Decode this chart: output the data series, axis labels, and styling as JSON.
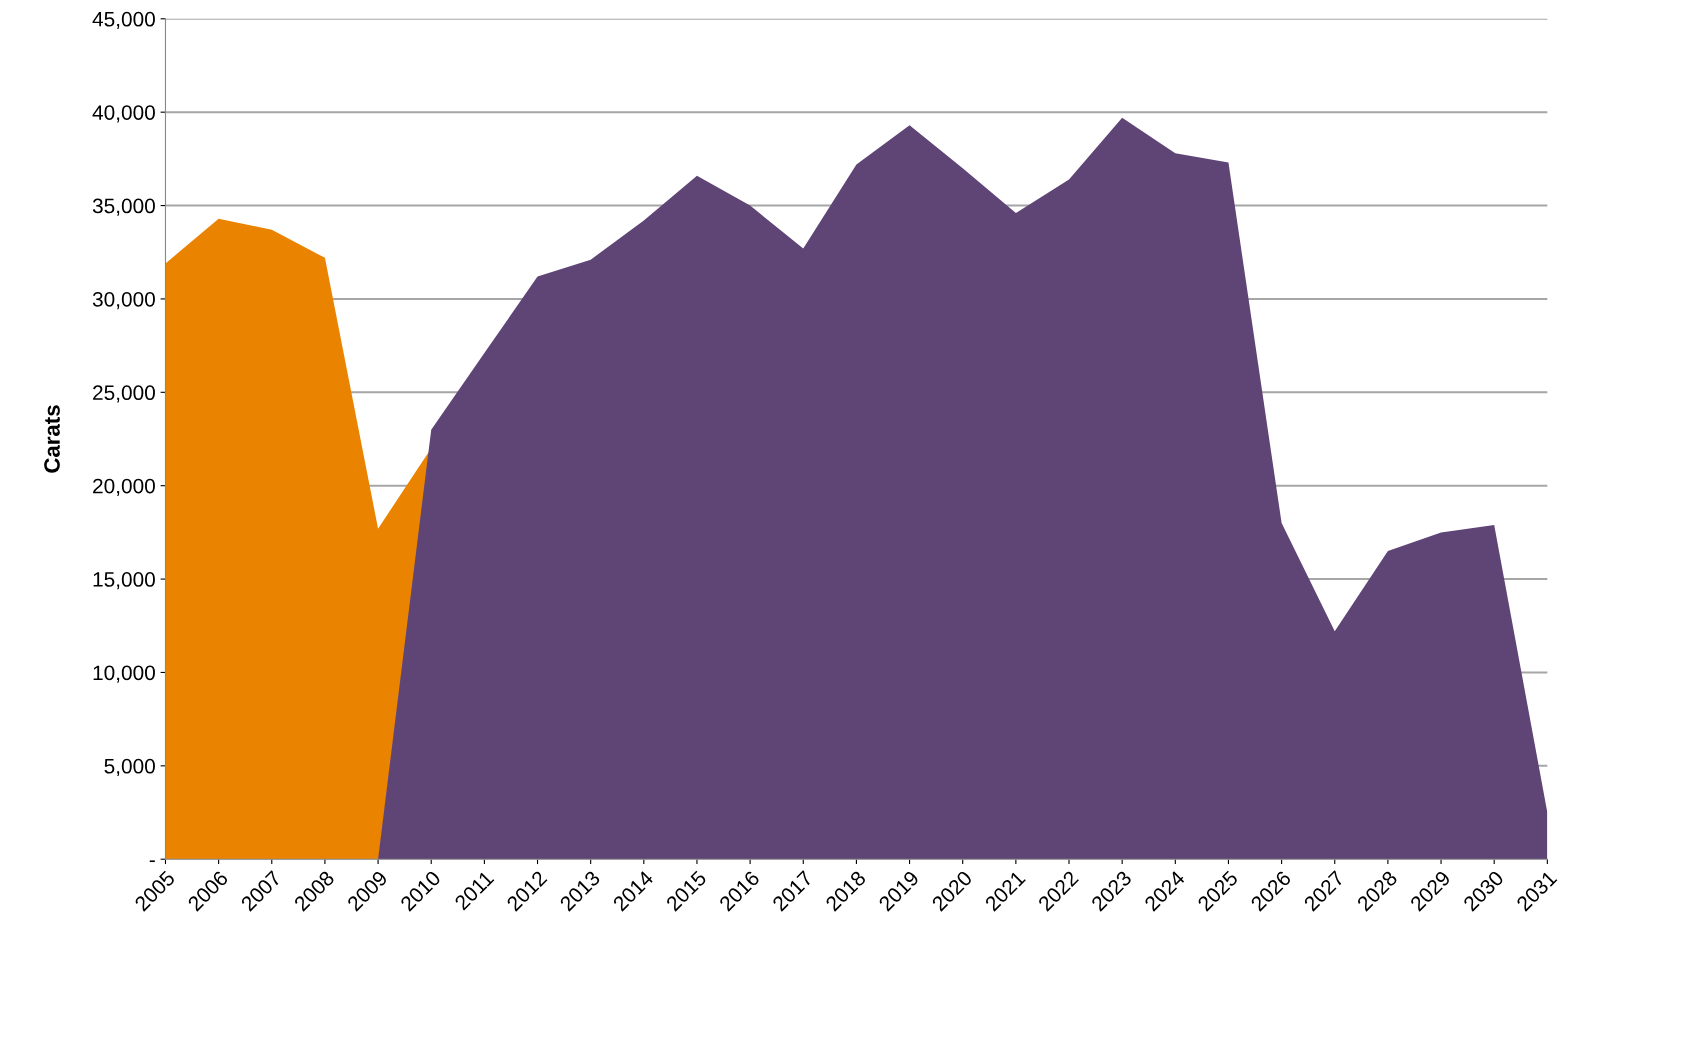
{
  "chart_data": {
    "type": "area",
    "ylabel": "Carats",
    "xlim": [
      2005,
      2031
    ],
    "xticks": [
      2005,
      2006,
      2007,
      2008,
      2009,
      2010,
      2011,
      2012,
      2013,
      2014,
      2015,
      2016,
      2017,
      2018,
      2019,
      2020,
      2021,
      2022,
      2023,
      2024,
      2025,
      2026,
      2027,
      2028,
      2029,
      2030,
      2031
    ],
    "ylim": [
      0,
      45000
    ],
    "yticks": [
      {
        "value": 0,
        "label": "-"
      },
      {
        "value": 5000,
        "label": "5,000"
      },
      {
        "value": 10000,
        "label": "10,000"
      },
      {
        "value": 15000,
        "label": "15,000"
      },
      {
        "value": 20000,
        "label": "20,000"
      },
      {
        "value": 25000,
        "label": "25,000"
      },
      {
        "value": 30000,
        "label": "30,000"
      },
      {
        "value": 35000,
        "label": "35,000"
      },
      {
        "value": 40000,
        "label": "40,000"
      },
      {
        "value": 45000,
        "label": "45,000"
      }
    ],
    "grid": "y",
    "legend": false,
    "series": [
      {
        "color": "#e98300",
        "x": [
          2005,
          2006,
          2007,
          2008,
          2009,
          2010
        ],
        "values": [
          31900,
          34300,
          33700,
          32200,
          17700,
          22000
        ]
      },
      {
        "color": "#5f4476",
        "x": [
          2009,
          2010,
          2011,
          2012,
          2013,
          2014,
          2015,
          2016,
          2017,
          2018,
          2019,
          2020,
          2021,
          2022,
          2023,
          2024,
          2025,
          2026,
          2027,
          2028,
          2029,
          2030,
          2031
        ],
        "values": [
          0,
          23000,
          27100,
          31200,
          32100,
          34200,
          36600,
          35000,
          32700,
          37200,
          39300,
          37000,
          34600,
          36400,
          39700,
          37800,
          37300,
          18000,
          12200,
          16500,
          17500,
          17900,
          2500
        ]
      }
    ]
  }
}
